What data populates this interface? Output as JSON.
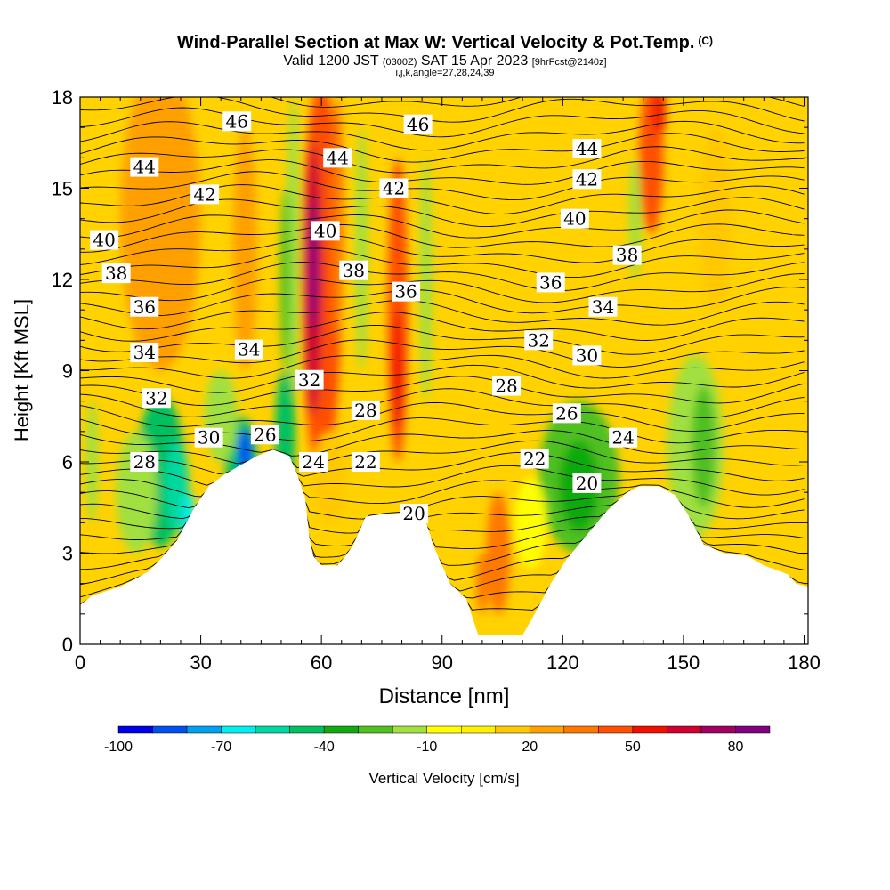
{
  "titles": {
    "main": "Wind-Parallel Section at Max W: Vertical Velocity & Pot.Temp.",
    "main_mark": "(C)",
    "valid_prefix": "Valid 1200 JST",
    "valid_zulu": "(0300Z)",
    "valid_date": "SAT 15 Apr 2023",
    "forecast_tag": "[9hrFcst@2140z]",
    "indices": "i,j,k,angle=27,28,24,39"
  },
  "chart_data": {
    "type": "heatmap",
    "xlabel": "Distance [nm]",
    "ylabel": "Height [Kft MSL]",
    "xlim": [
      0,
      181
    ],
    "ylim": [
      0,
      18
    ],
    "x_ticks": [
      0,
      30,
      60,
      90,
      120,
      150,
      180
    ],
    "y_ticks": [
      0,
      3,
      6,
      9,
      12,
      15,
      18
    ],
    "x_tick_labels": [
      "0",
      "30",
      "60",
      "90",
      "120",
      "150",
      "180"
    ],
    "y_tick_labels": [
      "0",
      "3",
      "6",
      "9",
      "12",
      "15",
      "18"
    ],
    "colorbar": {
      "label": "Vertical Velocity [cm/s]",
      "levels": [
        -100,
        -90,
        -80,
        -70,
        -60,
        -50,
        -40,
        -30,
        -20,
        -10,
        0,
        10,
        20,
        30,
        40,
        50,
        60,
        70,
        80,
        90
      ],
      "tick_labels": [
        "-100",
        "-70",
        "-40",
        "-10",
        "20",
        "50",
        "80"
      ],
      "tick_values": [
        -100,
        -70,
        -40,
        -10,
        20,
        50,
        80
      ],
      "colors": [
        "#0000e6",
        "#0050f0",
        "#00a0f0",
        "#00f0f0",
        "#00d8a0",
        "#00c060",
        "#10aa10",
        "#50c020",
        "#a0e040",
        "#ffff00",
        "#fff000",
        "#ffc800",
        "#ffa000",
        "#ff7800",
        "#ff5000",
        "#f01000",
        "#d00030",
        "#a00060",
        "#800080"
      ]
    },
    "terrain": [
      [
        0,
        1.3
      ],
      [
        3,
        1.6
      ],
      [
        10,
        1.9
      ],
      [
        13,
        2.1
      ],
      [
        17,
        2.4
      ],
      [
        20,
        2.8
      ],
      [
        24,
        3.4
      ],
      [
        28,
        4.4
      ],
      [
        32,
        5.2
      ],
      [
        36,
        5.6
      ],
      [
        40,
        5.9
      ],
      [
        44,
        6.2
      ],
      [
        48,
        6.4
      ],
      [
        52,
        6.2
      ],
      [
        54,
        5.6
      ],
      [
        56,
        4.8
      ],
      [
        57,
        3.5
      ],
      [
        58,
        2.9
      ],
      [
        60,
        2.6
      ],
      [
        62,
        2.6
      ],
      [
        64,
        2.6
      ],
      [
        66,
        2.9
      ],
      [
        68,
        3.3
      ],
      [
        71,
        4.2
      ],
      [
        76,
        4.3
      ],
      [
        82,
        4.3
      ],
      [
        86,
        4.0
      ],
      [
        88,
        3.2
      ],
      [
        92,
        2.0
      ],
      [
        96,
        1.5
      ],
      [
        99,
        0.3
      ],
      [
        110,
        0.3
      ],
      [
        113,
        1.0
      ],
      [
        117,
        2.0
      ],
      [
        121,
        2.8
      ],
      [
        126,
        3.6
      ],
      [
        131,
        4.4
      ],
      [
        136,
        5.0
      ],
      [
        139,
        5.2
      ],
      [
        144,
        5.2
      ],
      [
        148,
        4.9
      ],
      [
        151,
        4.3
      ],
      [
        155,
        3.3
      ],
      [
        160,
        3.0
      ],
      [
        166,
        2.9
      ],
      [
        170,
        2.6
      ],
      [
        176,
        2.3
      ],
      [
        178,
        2.0
      ],
      [
        181,
        1.9
      ]
    ],
    "isentrope_labels": [
      {
        "text": "46",
        "x": 39,
        "y": 17.2
      },
      {
        "text": "46",
        "x": 84,
        "y": 17.1
      },
      {
        "text": "44",
        "x": 16,
        "y": 15.7
      },
      {
        "text": "44",
        "x": 64,
        "y": 16.0
      },
      {
        "text": "44",
        "x": 126,
        "y": 16.3
      },
      {
        "text": "42",
        "x": 31,
        "y": 14.8
      },
      {
        "text": "42",
        "x": 78,
        "y": 15.0
      },
      {
        "text": "42",
        "x": 126,
        "y": 15.3
      },
      {
        "text": "40",
        "x": 6,
        "y": 13.3
      },
      {
        "text": "40",
        "x": 61,
        "y": 13.6
      },
      {
        "text": "40",
        "x": 123,
        "y": 14.0
      },
      {
        "text": "38",
        "x": 9,
        "y": 12.2
      },
      {
        "text": "38",
        "x": 68,
        "y": 12.3
      },
      {
        "text": "38",
        "x": 136,
        "y": 12.8
      },
      {
        "text": "36",
        "x": 16,
        "y": 11.1
      },
      {
        "text": "36",
        "x": 81,
        "y": 11.6
      },
      {
        "text": "36",
        "x": 117,
        "y": 11.9
      },
      {
        "text": "34",
        "x": 16,
        "y": 9.6
      },
      {
        "text": "34",
        "x": 42,
        "y": 9.7
      },
      {
        "text": "34",
        "x": 130,
        "y": 11.1
      },
      {
        "text": "32",
        "x": 57,
        "y": 8.7
      },
      {
        "text": "32",
        "x": 19,
        "y": 8.1
      },
      {
        "text": "32",
        "x": 114,
        "y": 10.0
      },
      {
        "text": "30",
        "x": 32,
        "y": 6.8
      },
      {
        "text": "30",
        "x": 126,
        "y": 9.5
      },
      {
        "text": "28",
        "x": 71,
        "y": 7.7
      },
      {
        "text": "28",
        "x": 106,
        "y": 8.5
      },
      {
        "text": "28",
        "x": 16,
        "y": 6.0
      },
      {
        "text": "26",
        "x": 46,
        "y": 6.9
      },
      {
        "text": "26",
        "x": 121,
        "y": 7.6
      },
      {
        "text": "24",
        "x": 58,
        "y": 6.0
      },
      {
        "text": "24",
        "x": 135,
        "y": 6.8
      },
      {
        "text": "22",
        "x": 71,
        "y": 6.0
      },
      {
        "text": "22",
        "x": 113,
        "y": 6.1
      },
      {
        "text": "20",
        "x": 83,
        "y": 4.3
      },
      {
        "text": "20",
        "x": 126,
        "y": 5.3
      }
    ]
  }
}
